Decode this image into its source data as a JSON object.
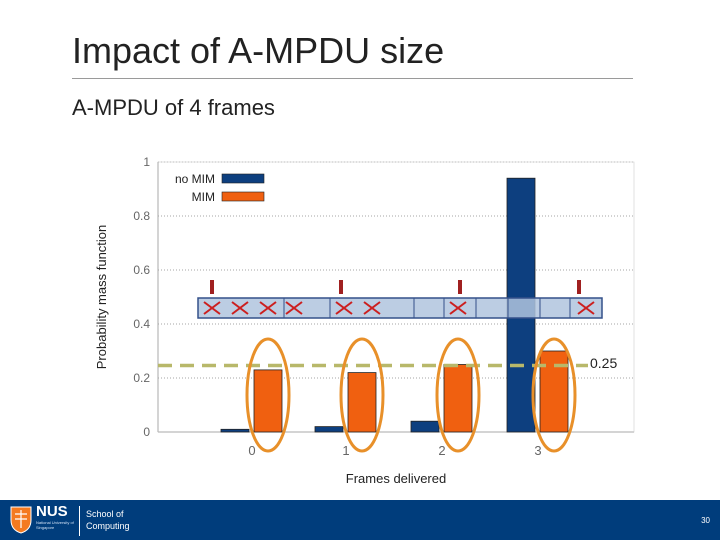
{
  "slide": {
    "title": "Impact of A-MPDU size",
    "subtitle": "A-MPDU of 4 frames",
    "threshold_label": "0.25"
  },
  "chart_data": {
    "type": "bar",
    "categories": [
      "0",
      "1",
      "2",
      "3"
    ],
    "series": [
      {
        "name": "no MIM",
        "color": "#0d3f7f",
        "values": [
          0.01,
          0.02,
          0.04,
          0.94
        ]
      },
      {
        "name": "MIM",
        "color": "#f06010",
        "values": [
          0.23,
          0.22,
          0.25,
          0.3
        ]
      }
    ],
    "xlabel": "Frames delivered",
    "ylabel": "Probability mass function",
    "ylim": [
      0,
      1
    ],
    "yticks": [
      "0",
      "0.2",
      "0.4",
      "0.6",
      "0.8",
      "1"
    ],
    "grid": true,
    "legend": "top-left",
    "threshold": 0.25
  },
  "footer": {
    "logo_text": "NUS",
    "logo_subtext": "National University of Singapore",
    "department": "School of Computing",
    "page_number": "30"
  }
}
